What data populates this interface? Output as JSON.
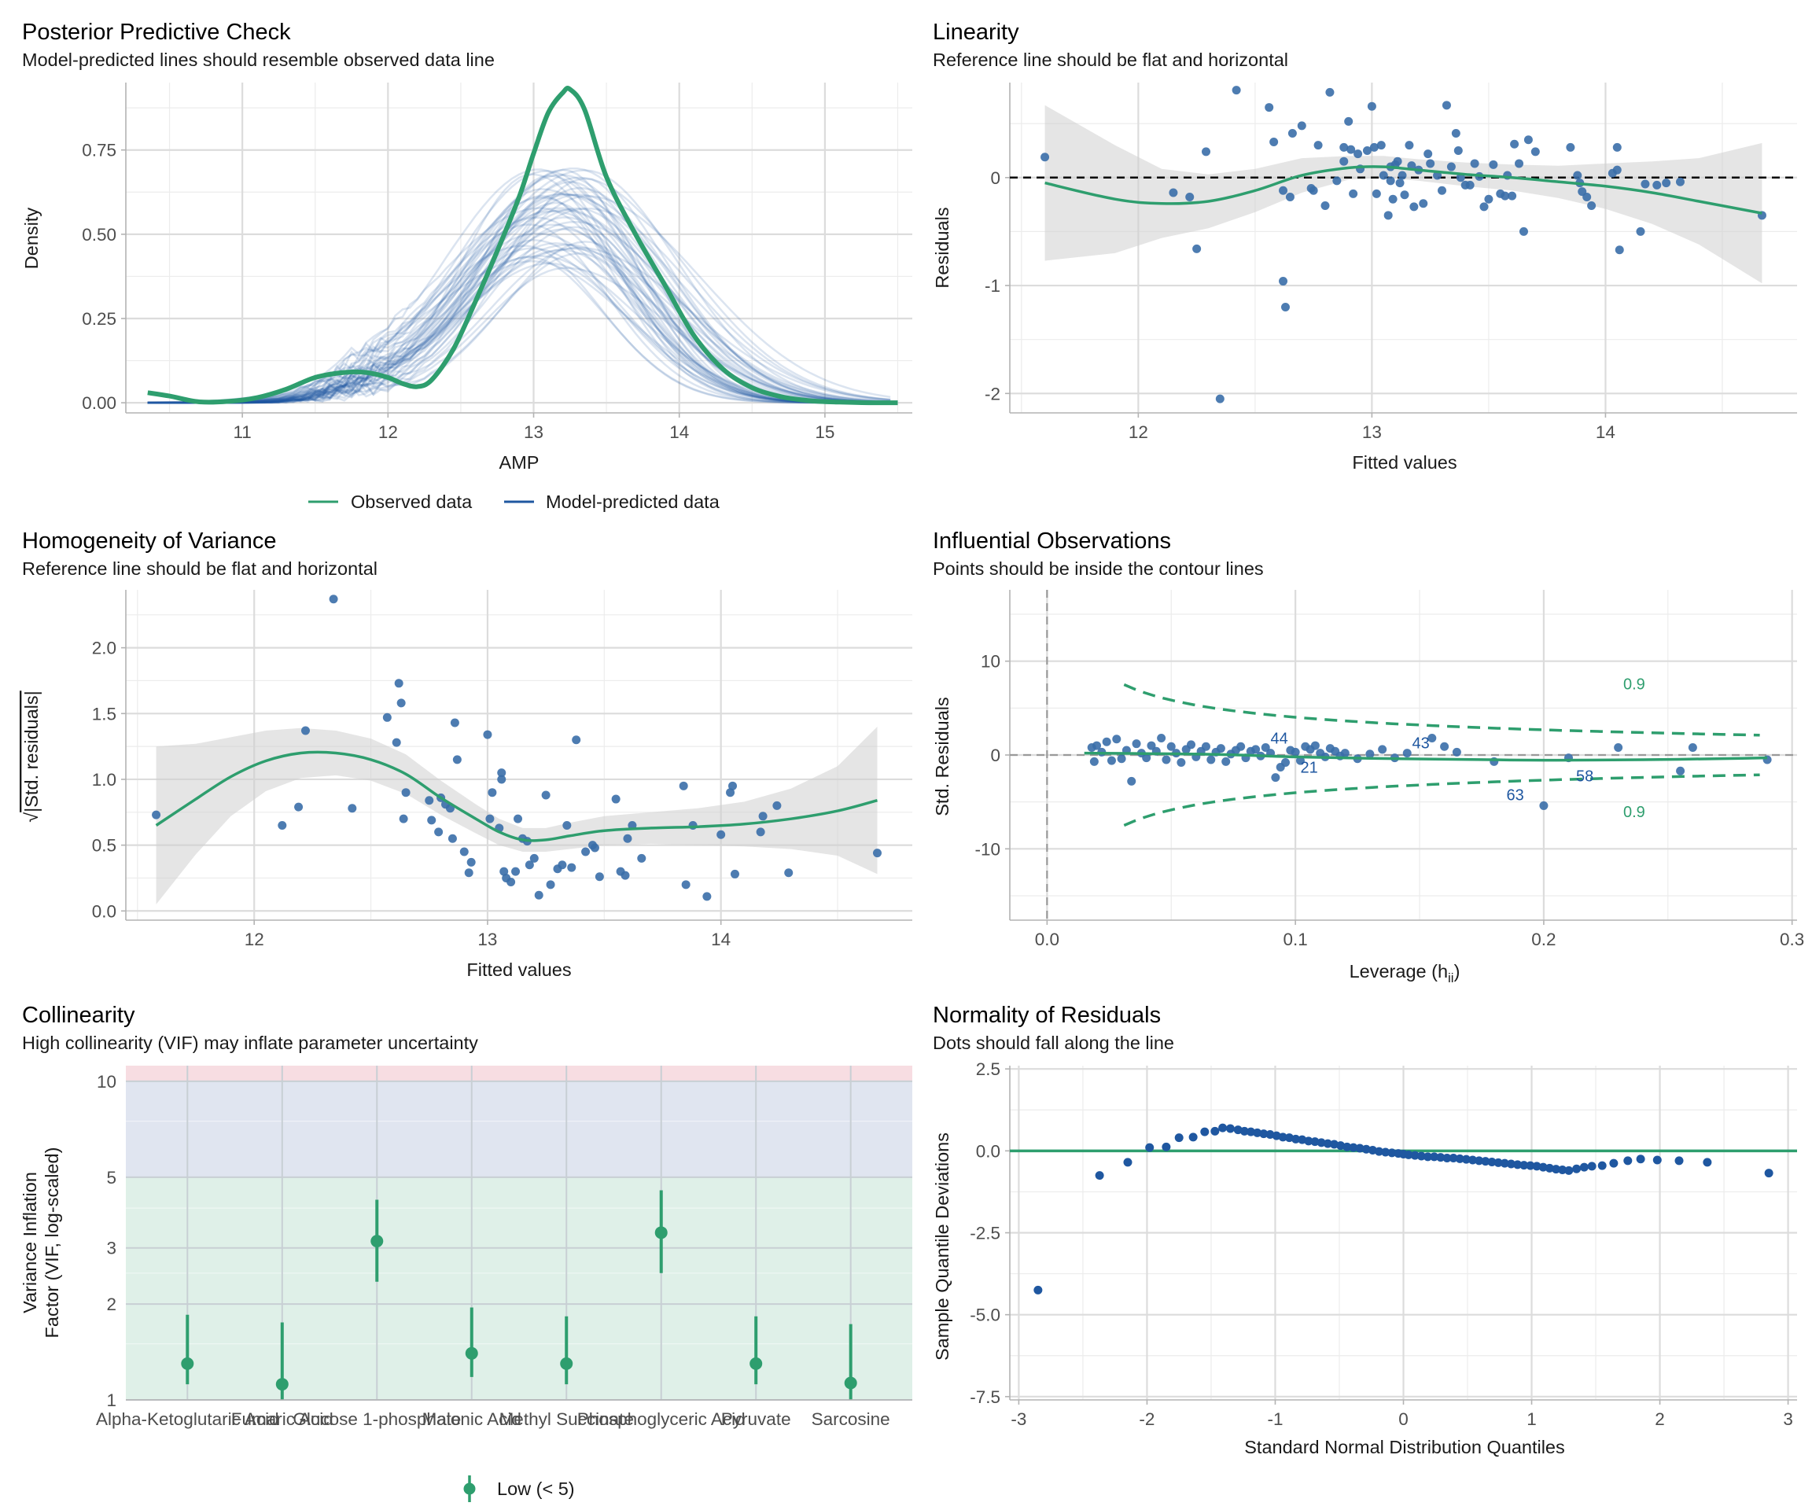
{
  "colors": {
    "green": "#2E9E6E",
    "blue": "#1F57A0",
    "point_blue": "#3A6EA8",
    "band_gray": "#d0d0d0",
    "vif_low_bg": "#dff0e8",
    "vif_mid_bg": "#e0e5f0",
    "vif_high_bg": "#f7dde2"
  },
  "panels": {
    "ppc": {
      "title": "Posterior Predictive Check",
      "subtitle": "Model-predicted lines should resemble observed data line",
      "xlabel": "AMP",
      "ylabel": "Density",
      "legend_observed": "Observed data",
      "legend_predicted": "Model-predicted data"
    },
    "linearity": {
      "title": "Linearity",
      "subtitle": "Reference line should be flat and horizontal",
      "xlabel": "Fitted values",
      "ylabel": "Residuals"
    },
    "homogeneity": {
      "title": "Homogeneity of Variance",
      "subtitle": "Reference line should be flat and horizontal",
      "xlabel": "Fitted values",
      "ylabel": "|Std. residuals|",
      "ylabel_prefix": "√"
    },
    "influential": {
      "title": "Influential Observations",
      "subtitle": "Points should be inside the contour lines",
      "xlabel": "Leverage (h",
      "xlabel_sub": "ii",
      "xlabel_close": ")",
      "ylabel": "Std. Residuals"
    },
    "collinearity": {
      "title": "Collinearity",
      "subtitle": "High collinearity (VIF) may inflate parameter uncertainty",
      "ylabel_line1": "Variance Inflation",
      "ylabel_line2": "Factor (VIF, log-scaled)",
      "legend_low": "Low (< 5)"
    },
    "normality": {
      "title": "Normality of Residuals",
      "subtitle": "Dots should fall along the line",
      "xlabel": "Standard Normal Distribution Quantiles",
      "ylabel": "Sample Quantile Deviations"
    }
  },
  "chart_data": [
    {
      "id": "ppc",
      "type": "line",
      "title": "Posterior Predictive Check",
      "xlabel": "AMP",
      "ylabel": "Density",
      "xlim": [
        10.2,
        15.6
      ],
      "ylim": [
        -0.03,
        0.95
      ],
      "xticks": [
        11,
        12,
        13,
        14,
        15
      ],
      "yticks": [
        0,
        0.25,
        0.5,
        0.75
      ],
      "ytick_labels": [
        "0.00",
        "0.25",
        "0.50",
        "0.75"
      ],
      "legend": "bottom",
      "observed": {
        "name": "Observed data",
        "x": [
          10.35,
          10.5,
          10.7,
          10.9,
          11.1,
          11.3,
          11.5,
          11.7,
          11.85,
          12.0,
          12.1,
          12.2,
          12.3,
          12.45,
          12.6,
          12.75,
          12.9,
          13.0,
          13.1,
          13.2,
          13.25,
          13.35,
          13.5,
          13.7,
          13.9,
          14.1,
          14.3,
          14.5,
          14.7,
          14.9,
          15.1,
          15.3,
          15.5
        ],
        "y": [
          0.03,
          0.02,
          0.003,
          0.004,
          0.015,
          0.04,
          0.075,
          0.09,
          0.09,
          0.075,
          0.057,
          0.048,
          0.068,
          0.16,
          0.3,
          0.45,
          0.61,
          0.74,
          0.86,
          0.92,
          0.93,
          0.87,
          0.67,
          0.5,
          0.35,
          0.2,
          0.1,
          0.045,
          0.018,
          0.006,
          0.002,
          0.0,
          0.0
        ]
      },
      "predicted": {
        "name": "Model-predicted data",
        "n_draws": 50,
        "center_mean": 13.15,
        "center_sd": 0.62,
        "peak_range": [
          0.4,
          0.7
        ]
      }
    },
    {
      "id": "linearity",
      "type": "scatter",
      "title": "Linearity",
      "xlabel": "Fitted values",
      "ylabel": "Residuals",
      "xlim": [
        11.45,
        14.82
      ],
      "ylim": [
        -2.18,
        0.88
      ],
      "xticks": [
        12,
        13,
        14
      ],
      "yticks": [
        -2,
        -1,
        0
      ],
      "x": [
        11.6,
        12.15,
        12.22,
        12.25,
        12.29,
        12.35,
        12.42,
        12.56,
        12.58,
        12.62,
        12.62,
        12.63,
        12.65,
        12.66,
        12.7,
        12.74,
        12.75,
        12.77,
        12.8,
        12.82,
        12.85,
        12.88,
        12.88,
        12.9,
        12.91,
        12.92,
        12.94,
        12.95,
        12.98,
        13.0,
        13.01,
        13.02,
        13.04,
        13.05,
        13.07,
        13.08,
        13.08,
        13.09,
        13.1,
        13.11,
        13.12,
        13.13,
        13.14,
        13.16,
        13.17,
        13.18,
        13.2,
        13.22,
        13.24,
        13.25,
        13.28,
        13.3,
        13.32,
        13.34,
        13.36,
        13.37,
        13.38,
        13.4,
        13.42,
        13.44,
        13.46,
        13.48,
        13.5,
        13.52,
        13.55,
        13.57,
        13.58,
        13.6,
        13.61,
        13.63,
        13.65,
        13.67,
        13.7,
        13.85,
        13.88,
        13.89,
        13.9,
        13.92,
        13.94,
        14.03,
        14.05,
        14.05,
        14.06,
        14.15,
        14.17,
        14.22,
        14.26,
        14.32,
        14.67
      ],
      "y": [
        0.19,
        -0.14,
        -0.18,
        -0.66,
        0.24,
        -2.05,
        0.81,
        0.65,
        0.33,
        -0.12,
        -0.96,
        -1.2,
        -0.18,
        0.41,
        0.48,
        -0.1,
        -0.12,
        0.3,
        -0.26,
        0.79,
        -0.03,
        0.28,
        0.15,
        0.52,
        0.26,
        -0.15,
        0.22,
        0.08,
        0.25,
        0.66,
        0.28,
        -0.15,
        0.3,
        0.02,
        -0.35,
        -0.03,
        0.1,
        -0.2,
        0.12,
        0.15,
        -0.05,
        0.02,
        -0.16,
        0.3,
        0.11,
        -0.27,
        0.07,
        -0.24,
        0.22,
        0.13,
        0.02,
        -0.12,
        0.67,
        0.1,
        0.41,
        0.25,
        0.0,
        -0.07,
        -0.07,
        0.13,
        0.01,
        -0.27,
        -0.2,
        0.12,
        -0.15,
        -0.17,
        0.02,
        -0.17,
        0.31,
        0.13,
        -0.5,
        0.35,
        0.24,
        0.28,
        0.02,
        -0.05,
        -0.13,
        -0.18,
        -0.26,
        0.04,
        0.07,
        0.28,
        -0.67,
        -0.5,
        -0.06,
        -0.07,
        -0.05,
        -0.04,
        -0.35
      ],
      "smooth_x": [
        11.6,
        11.9,
        12.1,
        12.3,
        12.5,
        12.7,
        12.9,
        13.05,
        13.2,
        13.4,
        13.6,
        13.8,
        14.0,
        14.2,
        14.4,
        14.67
      ],
      "smooth_y": [
        -0.05,
        -0.2,
        -0.24,
        -0.22,
        -0.12,
        0.02,
        0.09,
        0.1,
        0.07,
        0.03,
        0.0,
        -0.04,
        -0.08,
        -0.14,
        -0.22,
        -0.33
      ],
      "band_halfwidth": [
        0.72,
        0.5,
        0.32,
        0.25,
        0.2,
        0.16,
        0.11,
        0.1,
        0.1,
        0.11,
        0.12,
        0.15,
        0.21,
        0.29,
        0.4,
        0.65
      ],
      "reference_line_y": 0
    },
    {
      "id": "homogeneity",
      "type": "scatter",
      "title": "Homogeneity of Variance",
      "xlabel": "Fitted values",
      "ylabel": "√|Std. residuals|",
      "xlim": [
        11.45,
        14.82
      ],
      "ylim": [
        -0.07,
        2.44
      ],
      "xticks": [
        12,
        13,
        14
      ],
      "yticks": [
        0,
        0.5,
        1,
        1.5,
        2
      ],
      "ytick_labels": [
        "0.0",
        "0.5",
        "1.0",
        "1.5",
        "2.0"
      ],
      "x": [
        11.58,
        12.12,
        12.19,
        12.22,
        12.34,
        12.42,
        12.57,
        12.61,
        12.62,
        12.63,
        12.64,
        12.65,
        12.75,
        12.76,
        12.79,
        12.8,
        12.82,
        12.84,
        12.85,
        12.86,
        12.87,
        12.9,
        12.92,
        12.93,
        13.0,
        13.01,
        13.02,
        13.05,
        13.06,
        13.06,
        13.07,
        13.08,
        13.1,
        13.12,
        13.13,
        13.15,
        13.17,
        13.18,
        13.2,
        13.22,
        13.25,
        13.27,
        13.3,
        13.32,
        13.34,
        13.36,
        13.38,
        13.42,
        13.45,
        13.46,
        13.48,
        13.55,
        13.57,
        13.59,
        13.6,
        13.62,
        13.66,
        13.84,
        13.85,
        13.88,
        13.94,
        14.0,
        14.04,
        14.05,
        14.06,
        14.17,
        14.18,
        14.24,
        14.29,
        14.67
      ],
      "y": [
        0.73,
        0.65,
        0.79,
        1.37,
        2.37,
        0.78,
        1.47,
        1.28,
        1.73,
        1.58,
        0.7,
        0.9,
        0.84,
        0.69,
        0.6,
        0.86,
        0.81,
        0.78,
        0.55,
        1.43,
        1.15,
        0.45,
        0.29,
        0.37,
        1.34,
        0.7,
        0.9,
        0.63,
        1.0,
        1.05,
        0.3,
        0.25,
        0.22,
        0.3,
        0.7,
        0.55,
        0.53,
        0.35,
        0.4,
        0.12,
        0.88,
        0.2,
        0.32,
        0.35,
        0.65,
        0.33,
        1.3,
        0.45,
        0.5,
        0.48,
        0.26,
        0.85,
        0.3,
        0.27,
        0.55,
        0.65,
        0.4,
        0.95,
        0.2,
        0.65,
        0.11,
        0.58,
        0.9,
        0.95,
        0.28,
        0.6,
        0.72,
        0.8,
        0.29,
        0.44
      ],
      "smooth_x": [
        11.58,
        11.75,
        11.9,
        12.05,
        12.2,
        12.35,
        12.5,
        12.65,
        12.8,
        12.95,
        13.05,
        13.15,
        13.25,
        13.35,
        13.5,
        13.7,
        13.9,
        14.1,
        14.3,
        14.5,
        14.67
      ],
      "smooth_y": [
        0.65,
        0.85,
        1.02,
        1.14,
        1.2,
        1.2,
        1.15,
        1.04,
        0.86,
        0.7,
        0.6,
        0.54,
        0.54,
        0.57,
        0.61,
        0.63,
        0.64,
        0.66,
        0.7,
        0.76,
        0.84
      ],
      "band_halfwidth": [
        0.6,
        0.42,
        0.3,
        0.23,
        0.19,
        0.17,
        0.16,
        0.15,
        0.13,
        0.11,
        0.1,
        0.09,
        0.09,
        0.1,
        0.11,
        0.12,
        0.14,
        0.17,
        0.23,
        0.34,
        0.56
      ]
    },
    {
      "id": "influential",
      "type": "scatter",
      "title": "Influential Observations",
      "xlabel": "Leverage (hii)",
      "ylabel": "Std. Residuals",
      "xlim": [
        -0.015,
        0.302
      ],
      "ylim": [
        -17.6,
        17.6
      ],
      "xticks": [
        0.0,
        0.1,
        0.2,
        0.3
      ],
      "xtick_labels": [
        "0.0",
        "0.1",
        "0.2",
        "0.3"
      ],
      "yticks": [
        -10,
        0,
        10
      ],
      "contour_label": "0.9",
      "contour_label_positions": [
        [
          0.232,
          7.0
        ],
        [
          0.232,
          -6.6
        ]
      ],
      "x": [
        0.018,
        0.019,
        0.02,
        0.022,
        0.024,
        0.026,
        0.028,
        0.03,
        0.032,
        0.034,
        0.036,
        0.038,
        0.04,
        0.042,
        0.044,
        0.046,
        0.048,
        0.05,
        0.052,
        0.054,
        0.056,
        0.058,
        0.06,
        0.062,
        0.064,
        0.066,
        0.068,
        0.07,
        0.072,
        0.074,
        0.076,
        0.078,
        0.08,
        0.082,
        0.084,
        0.086,
        0.088,
        0.09,
        0.092,
        0.094,
        0.096,
        0.098,
        0.1,
        0.102,
        0.104,
        0.106,
        0.108,
        0.11,
        0.112,
        0.114,
        0.116,
        0.118,
        0.12,
        0.125,
        0.13,
        0.135,
        0.14,
        0.145,
        0.155,
        0.16,
        0.165,
        0.18,
        0.2,
        0.21,
        0.23,
        0.255,
        0.26,
        0.29
      ],
      "y": [
        0.8,
        -0.7,
        1.0,
        0.3,
        1.4,
        -0.6,
        1.7,
        -0.4,
        0.5,
        -2.8,
        1.2,
        0.2,
        -0.3,
        1.0,
        0.4,
        1.8,
        -0.5,
        0.9,
        0.2,
        -0.8,
        0.6,
        1.1,
        -0.2,
        0.4,
        0.9,
        -0.5,
        0.3,
        0.7,
        -0.7,
        0.1,
        0.5,
        0.9,
        -0.3,
        0.4,
        0.6,
        -0.1,
        0.8,
        0.2,
        -2.4,
        -1.3,
        -0.8,
        0.5,
        0.3,
        -0.6,
        0.9,
        0.6,
        1.0,
        0.2,
        -0.2,
        0.7,
        0.4,
        -0.1,
        0.2,
        -0.4,
        0.1,
        0.6,
        -0.3,
        0.2,
        1.8,
        0.9,
        0.3,
        -0.7,
        -5.4,
        -0.3,
        0.8,
        -1.7,
        0.8,
        -0.5
      ],
      "labels": [
        {
          "text": "44",
          "x": 0.09,
          "y": 1.2
        },
        {
          "text": "21",
          "x": 0.102,
          "y": -1.9
        },
        {
          "text": "43",
          "x": 0.147,
          "y": 0.7
        },
        {
          "text": "58",
          "x": 0.213,
          "y": -2.8
        },
        {
          "text": "63",
          "x": 0.185,
          "y": -4.8
        }
      ],
      "smooth_x": [
        0.015,
        0.04,
        0.07,
        0.1,
        0.13,
        0.16,
        0.2,
        0.24,
        0.28,
        0.29
      ],
      "smooth_y": [
        0.2,
        0.15,
        0.05,
        -0.2,
        -0.35,
        -0.45,
        -0.55,
        -0.5,
        -0.35,
        -0.3
      ]
    },
    {
      "id": "collinearity",
      "type": "scatter",
      "title": "Collinearity",
      "ylabel": "Variance Inflation Factor (VIF, log-scaled)",
      "yscale": "log",
      "ylim": [
        1,
        11.2
      ],
      "yticks": [
        1,
        2,
        3,
        5,
        10
      ],
      "categories": [
        "Alpha-Ketoglutaric Acid",
        "Fumaric Acid",
        "Glucose 1-phosphate",
        "Malonic Acid",
        "Methyl Succinate",
        "Phosphoglyceric Acid",
        "Pyruvate",
        "Sarcosine"
      ],
      "vif": [
        1.3,
        1.12,
        3.15,
        1.4,
        1.3,
        3.35,
        1.3,
        1.13
      ],
      "ci_low": [
        1.12,
        1.0,
        2.35,
        1.18,
        1.12,
        2.5,
        1.12,
        1.0
      ],
      "ci_high": [
        1.85,
        1.75,
        4.25,
        1.95,
        1.83,
        4.55,
        1.83,
        1.73
      ],
      "legend": "bottom",
      "legend_entries": [
        "Low (< 5)"
      ]
    },
    {
      "id": "normality",
      "type": "scatter",
      "title": "Normality of Residuals",
      "xlabel": "Standard Normal Distribution Quantiles",
      "ylabel": "Sample Quantile Deviations",
      "xlim": [
        -3.07,
        3.07
      ],
      "ylim": [
        -7.6,
        2.6
      ],
      "xticks": [
        -3,
        -2,
        -1,
        0,
        1,
        2,
        3
      ],
      "yticks": [
        -7.5,
        -5,
        -2.5,
        0,
        2.5
      ],
      "ytick_labels": [
        "-7.5",
        "-5.0",
        "-2.5",
        "0.0",
        "2.5"
      ],
      "x": [
        -2.85,
        -2.37,
        -2.15,
        -1.98,
        -1.85,
        -1.75,
        -1.64,
        -1.55,
        -1.47,
        -1.41,
        -1.35,
        -1.29,
        -1.24,
        -1.19,
        -1.14,
        -1.09,
        -1.04,
        -0.99,
        -0.94,
        -0.89,
        -0.84,
        -0.79,
        -0.74,
        -0.69,
        -0.64,
        -0.59,
        -0.54,
        -0.49,
        -0.44,
        -0.39,
        -0.34,
        -0.29,
        -0.24,
        -0.19,
        -0.14,
        -0.09,
        -0.04,
        0.0,
        0.04,
        0.09,
        0.14,
        0.19,
        0.24,
        0.29,
        0.34,
        0.39,
        0.44,
        0.49,
        0.54,
        0.59,
        0.64,
        0.69,
        0.74,
        0.79,
        0.84,
        0.89,
        0.94,
        0.99,
        1.04,
        1.09,
        1.14,
        1.19,
        1.24,
        1.29,
        1.35,
        1.41,
        1.47,
        1.55,
        1.64,
        1.75,
        1.85,
        1.98,
        2.15,
        2.37,
        2.85
      ],
      "y": [
        -4.25,
        -0.75,
        -0.35,
        0.1,
        0.12,
        0.4,
        0.42,
        0.58,
        0.6,
        0.7,
        0.68,
        0.64,
        0.6,
        0.58,
        0.55,
        0.52,
        0.5,
        0.46,
        0.42,
        0.4,
        0.36,
        0.34,
        0.3,
        0.28,
        0.25,
        0.22,
        0.2,
        0.16,
        0.12,
        0.1,
        0.08,
        0.05,
        0.02,
        -0.02,
        -0.04,
        -0.06,
        -0.08,
        -0.1,
        -0.12,
        -0.14,
        -0.16,
        -0.18,
        -0.18,
        -0.2,
        -0.22,
        -0.22,
        -0.24,
        -0.26,
        -0.28,
        -0.3,
        -0.32,
        -0.34,
        -0.36,
        -0.38,
        -0.4,
        -0.42,
        -0.44,
        -0.45,
        -0.47,
        -0.5,
        -0.53,
        -0.56,
        -0.58,
        -0.6,
        -0.55,
        -0.5,
        -0.47,
        -0.45,
        -0.38,
        -0.3,
        -0.25,
        -0.28,
        -0.3,
        -0.35,
        -0.68
      ],
      "reference_line_y": 0
    }
  ]
}
